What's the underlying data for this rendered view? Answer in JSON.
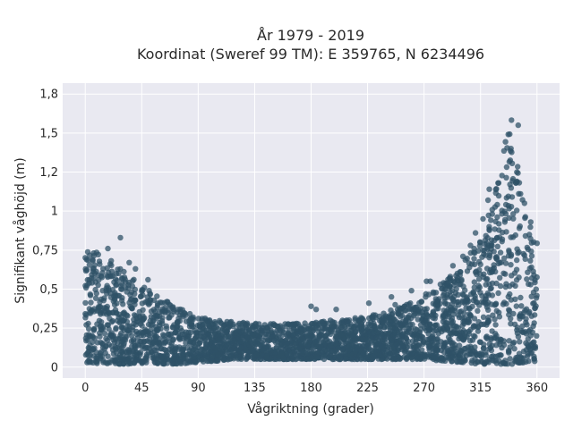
{
  "chart_data": {
    "type": "scatter",
    "title_line1": "År 1979 - 2019",
    "title_line2": "Koordinat (Sweref 99 TM): E 359765, N 6234496",
    "xlabel": "Vågriktning (grader)",
    "ylabel": "Signifikant våghöjd (m)",
    "xlim": [
      -18,
      378
    ],
    "ylim": [
      -0.07,
      1.82
    ],
    "x_ticks": [
      0,
      45,
      90,
      135,
      180,
      225,
      270,
      315,
      360
    ],
    "x_tick_labels": [
      "0",
      "45",
      "90",
      "135",
      "180",
      "225",
      "270",
      "315",
      "360"
    ],
    "y_ticks": [
      0,
      0.25,
      0.5,
      0.75,
      1,
      1.25,
      1.5,
      1.75
    ],
    "y_tick_labels": [
      "0",
      "0,25",
      "0,5",
      "0,75",
      "1",
      "1,2",
      "1,5",
      "1,8"
    ],
    "grid": true,
    "marker_color": "#2f5167",
    "background_color": "#e9e9f1",
    "envelope": {
      "x": [
        0,
        15,
        30,
        45,
        60,
        75,
        90,
        105,
        120,
        135,
        150,
        165,
        180,
        195,
        210,
        225,
        240,
        255,
        270,
        285,
        300,
        315,
        325,
        330,
        335,
        340,
        345,
        350,
        360
      ],
      "low": [
        0.03,
        0.02,
        0.02,
        0.02,
        0.02,
        0.02,
        0.03,
        0.04,
        0.05,
        0.05,
        0.05,
        0.05,
        0.05,
        0.05,
        0.05,
        0.05,
        0.05,
        0.05,
        0.05,
        0.04,
        0.03,
        0.02,
        0.02,
        0.02,
        0.02,
        0.02,
        0.02,
        0.02,
        0.03
      ],
      "high": [
        0.78,
        0.72,
        0.62,
        0.52,
        0.45,
        0.38,
        0.32,
        0.3,
        0.29,
        0.29,
        0.28,
        0.28,
        0.29,
        0.3,
        0.31,
        0.33,
        0.36,
        0.4,
        0.46,
        0.55,
        0.65,
        0.85,
        1.05,
        1.25,
        1.45,
        1.65,
        1.3,
        1.0,
        0.8
      ]
    },
    "outliers": [
      {
        "x": 28,
        "y": 0.83
      },
      {
        "x": 18,
        "y": 0.76
      },
      {
        "x": 35,
        "y": 0.67
      },
      {
        "x": 40,
        "y": 0.63
      },
      {
        "x": 50,
        "y": 0.56
      },
      {
        "x": 180,
        "y": 0.39
      },
      {
        "x": 184,
        "y": 0.37
      },
      {
        "x": 200,
        "y": 0.37
      },
      {
        "x": 226,
        "y": 0.41
      },
      {
        "x": 244,
        "y": 0.45
      },
      {
        "x": 247,
        "y": 0.4
      },
      {
        "x": 260,
        "y": 0.49
      },
      {
        "x": 272,
        "y": 0.55
      },
      {
        "x": 275,
        "y": 0.55
      },
      {
        "x": 283,
        "y": 0.53
      },
      {
        "x": 287,
        "y": 0.5
      },
      {
        "x": 293,
        "y": 0.65
      },
      {
        "x": 299,
        "y": 0.61
      },
      {
        "x": 301,
        "y": 0.71
      },
      {
        "x": 307,
        "y": 0.78
      },
      {
        "x": 311,
        "y": 0.86
      },
      {
        "x": 317,
        "y": 0.95
      },
      {
        "x": 321,
        "y": 1.07
      },
      {
        "x": 322,
        "y": 1.14
      },
      {
        "x": 345,
        "y": 1.55
      },
      {
        "x": 350,
        "y": 1.05
      },
      {
        "x": 355,
        "y": 0.93
      }
    ]
  }
}
